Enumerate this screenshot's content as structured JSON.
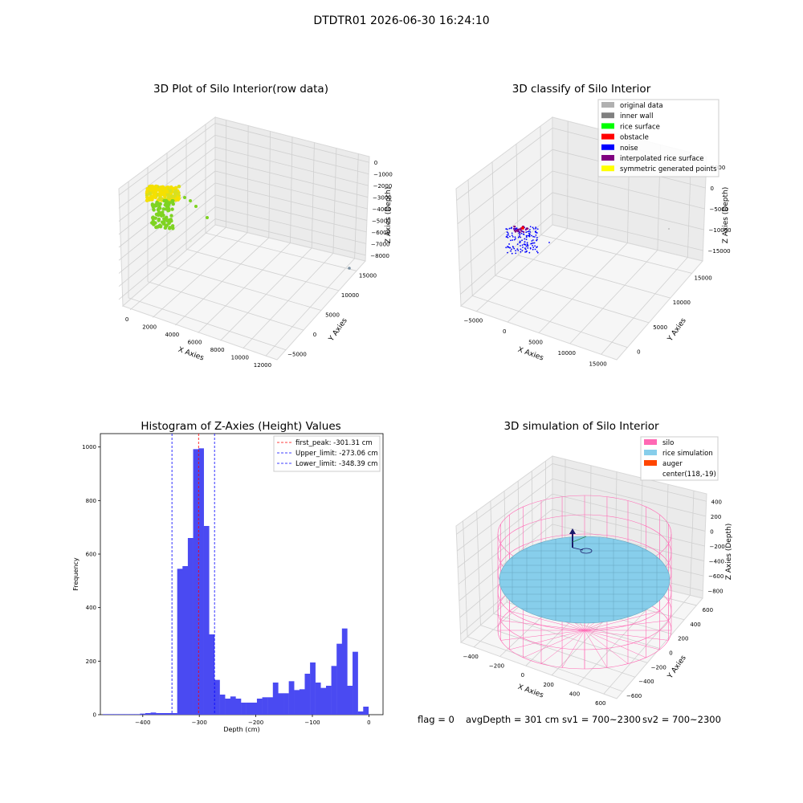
{
  "suptitle": "DTDTR01 2026-06-30 16:24:10",
  "footer": {
    "flag": "flag = 0",
    "avg": "avgDepth = 301 cm",
    "sv1": "sv1 = 700~2300",
    "sv2": "sv2 = 700~2300"
  },
  "chart_data": [
    {
      "type": "scatter",
      "projection": "3d",
      "title": "3D Plot of Silo Interior(row data)",
      "xlabel": "X Axies",
      "ylabel": "Y Axies",
      "zlabel": "Z Axies (Depth)",
      "x_ticks": [
        "0",
        "2000",
        "4000",
        "6000",
        "8000",
        "10000",
        "12000"
      ],
      "y_ticks": [
        "−5000",
        "0",
        "5000",
        "10000",
        "15000"
      ],
      "z_ticks": [
        "0",
        "−1000",
        "−2000",
        "−3000",
        "−4000",
        "−5000",
        "−6000",
        "−7000",
        "−8000"
      ],
      "colors": {
        "high": "#f5e000",
        "low": "#7ed321",
        "outlier": "#7a8fa0"
      }
    },
    {
      "type": "scatter",
      "projection": "3d",
      "title": "3D classify of Silo Interior",
      "xlabel": "X Axies",
      "ylabel": "Y Axies",
      "zlabel": "Z Axies (Depth)",
      "x_ticks": [
        "−5000",
        "0",
        "5000",
        "10000",
        "15000"
      ],
      "y_ticks": [
        "0",
        "5000",
        "10000",
        "15000"
      ],
      "z_ticks": [
        "5000",
        "0",
        "−5000",
        "−10000",
        "−15000"
      ],
      "legend_position": "top-right",
      "legend": [
        {
          "label": "original data",
          "color": "#b0b0b0"
        },
        {
          "label": "inner wall",
          "color": "#808080"
        },
        {
          "label": "rice surface",
          "color": "#00ff00"
        },
        {
          "label": "obstacle",
          "color": "#ff0000"
        },
        {
          "label": "noise",
          "color": "#0000ff"
        },
        {
          "label": "interpolated rice surface",
          "color": "#800080"
        },
        {
          "label": "symmetric generated points",
          "color": "#ffff00"
        }
      ]
    },
    {
      "type": "bar",
      "title": "Histogram of Z-Axies (Height) Values",
      "xlabel": "Depth (cm)",
      "ylabel": "Frequency",
      "xlim": [
        -475,
        25
      ],
      "ylim": [
        0,
        1050
      ],
      "x_ticks": [
        -400,
        -300,
        -200,
        -100,
        0
      ],
      "x_tick_labels": [
        "−400",
        "−300",
        "−200",
        "−100",
        "0"
      ],
      "y_ticks": [
        0,
        200,
        400,
        600,
        800,
        1000
      ],
      "bin_width": 9.4,
      "bin_starts": [
        -470.7,
        -461.3,
        -451.9,
        -442.5,
        -433.1,
        -423.7,
        -414.3,
        -404.9,
        -395.5,
        -386.1,
        -376.7,
        -367.3,
        -357.9,
        -348.5,
        -339.1,
        -329.7,
        -320.3,
        -310.9,
        -301.5,
        -292.1,
        -282.7,
        -273.3,
        -263.9,
        -254.5,
        -245.1,
        -235.7,
        -226.3,
        -216.9,
        -207.5,
        -198.1,
        -188.7,
        -179.3,
        -169.9,
        -160.5,
        -151.1,
        -141.7,
        -132.3,
        -122.9,
        -113.5,
        -104.1,
        -94.7,
        -85.3,
        -75.9,
        -66.5,
        -57.1,
        -47.7,
        -38.3,
        -28.9,
        -19.5,
        -10.1,
        -0.7
      ],
      "values": [
        2,
        2,
        2,
        2,
        2,
        2,
        2,
        4,
        6,
        8,
        6,
        6,
        6,
        6,
        545,
        555,
        660,
        992,
        995,
        705,
        300,
        130,
        75,
        60,
        68,
        60,
        45,
        45,
        45,
        60,
        65,
        65,
        120,
        80,
        80,
        125,
        92,
        95,
        153,
        195,
        120,
        100,
        108,
        182,
        265,
        322,
        108,
        235,
        12,
        30
      ],
      "bar_color": "#4a4af2",
      "vlines": [
        {
          "label": "first_peak: -301.31 cm",
          "x": -301.31,
          "color": "#ff0000"
        },
        {
          "label": "Upper_limit: -273.06 cm",
          "x": -273.06,
          "color": "#0000ff"
        },
        {
          "label": "Lower_limit: -348.39 cm",
          "x": -348.39,
          "color": "#0000ff"
        }
      ],
      "legend_position": "top-right"
    },
    {
      "type": "surface",
      "projection": "3d",
      "title": "3D simulation of Silo Interior",
      "xlabel": "X Axies",
      "ylabel": "Y Axies",
      "zlabel": "Z Axies (Depth)",
      "x_ticks": [
        "−400",
        "−200",
        "0",
        "200",
        "400",
        "600"
      ],
      "y_ticks": [
        "−600",
        "−400",
        "−200",
        "0",
        "200",
        "400",
        "600"
      ],
      "z_ticks": [
        "400",
        "200",
        "0",
        "−200",
        "−400",
        "−600",
        "−800"
      ],
      "legend_position": "top-right",
      "legend": [
        {
          "label": "silo",
          "color": "#ff69b4"
        },
        {
          "label": "rice simulation",
          "color": "#87ceeb"
        },
        {
          "label": "auger",
          "color": "#ff4500"
        },
        {
          "label": "center(118,-19)",
          "color": ""
        }
      ]
    }
  ]
}
